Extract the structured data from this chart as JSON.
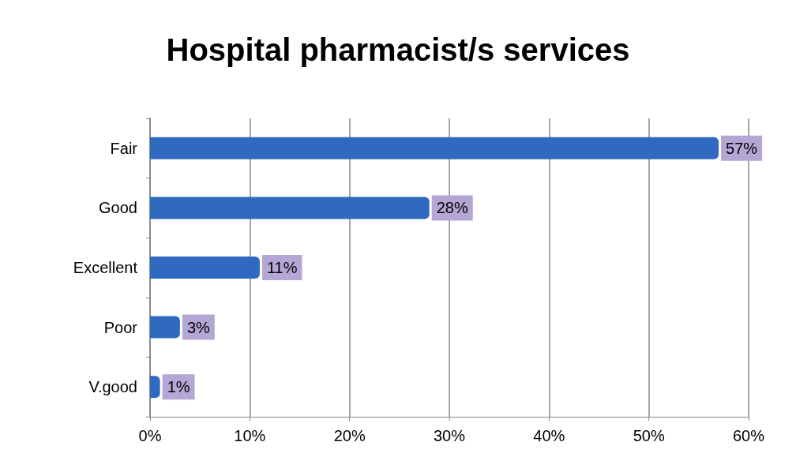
{
  "chart_data": {
    "type": "bar",
    "orientation": "horizontal",
    "title": "Hospital pharmacist/s services",
    "categories": [
      "Fair",
      "Good",
      "Excellent",
      "Poor",
      "V.good"
    ],
    "values": [
      57,
      28,
      11,
      3,
      1
    ],
    "value_labels": [
      "57%",
      "28%",
      "11%",
      "3%",
      "1%"
    ],
    "color": "#2f6ac0",
    "xlim": [
      0,
      60
    ],
    "xticks": [
      {
        "value": 0,
        "label": "0%"
      },
      {
        "value": 10,
        "label": "10%"
      },
      {
        "value": 20,
        "label": "20%"
      },
      {
        "value": 30,
        "label": "30%"
      },
      {
        "value": 40,
        "label": "40%"
      },
      {
        "value": 50,
        "label": "50%"
      },
      {
        "value": 60,
        "label": "60%"
      }
    ],
    "grid": "x"
  }
}
